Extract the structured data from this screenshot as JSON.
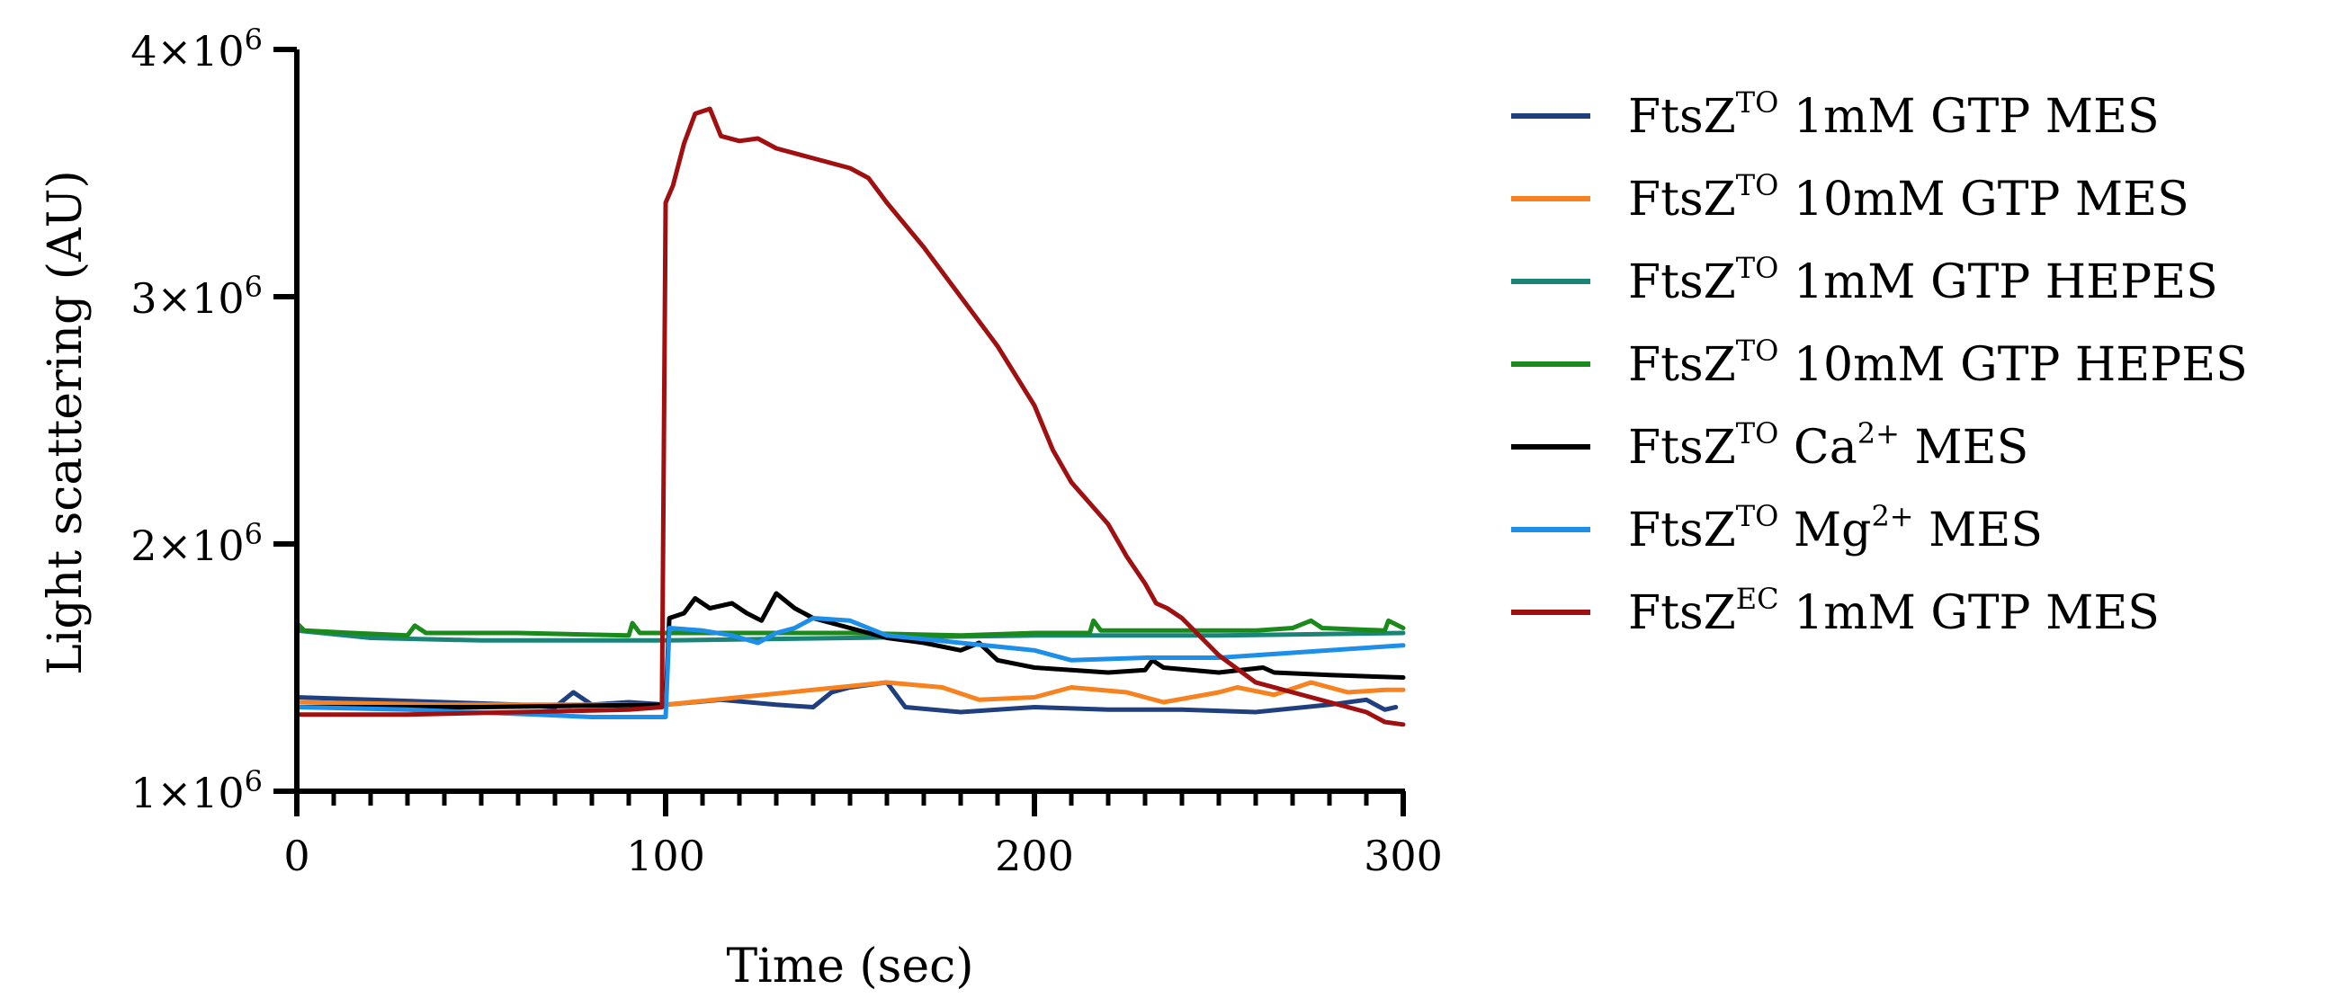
{
  "chart_data": {
    "type": "line",
    "title": "",
    "xlabel": "Time (sec)",
    "ylabel": "Light scattering (AU)",
    "xlim": [
      0,
      300
    ],
    "ylim": [
      1000000,
      4000000
    ],
    "x_ticks": [
      0,
      100,
      200,
      300
    ],
    "x_tick_labels": [
      "0",
      "100",
      "200",
      "300"
    ],
    "y_ticks": [
      {
        "value": 1000000,
        "mantissa": "1×10",
        "exponent": "6"
      },
      {
        "value": 2000000,
        "mantissa": "2×10",
        "exponent": "6"
      },
      {
        "value": 3000000,
        "mantissa": "3×10",
        "exponent": "6"
      },
      {
        "value": 4000000,
        "mantissa": "4×10",
        "exponent": "6"
      }
    ],
    "legend_position": "right",
    "series": [
      {
        "name": "FtsZTO 1mM GTP MES",
        "label": {
          "base": "FtsZ",
          "sup": "TO",
          "rest": " 1mM GTP MES",
          "sup2": "",
          "rest2": ""
        },
        "color": "#1f3f7f",
        "points": [
          [
            0,
            1380000
          ],
          [
            20,
            1370000
          ],
          [
            40,
            1360000
          ],
          [
            60,
            1350000
          ],
          [
            70,
            1340000
          ],
          [
            75,
            1400000
          ],
          [
            80,
            1350000
          ],
          [
            90,
            1360000
          ],
          [
            100,
            1350000
          ],
          [
            115,
            1370000
          ],
          [
            130,
            1350000
          ],
          [
            140,
            1340000
          ],
          [
            145,
            1400000
          ],
          [
            150,
            1420000
          ],
          [
            160,
            1440000
          ],
          [
            165,
            1340000
          ],
          [
            180,
            1320000
          ],
          [
            200,
            1340000
          ],
          [
            220,
            1330000
          ],
          [
            240,
            1330000
          ],
          [
            260,
            1320000
          ],
          [
            280,
            1350000
          ],
          [
            290,
            1370000
          ],
          [
            295,
            1330000
          ],
          [
            298,
            1340000
          ]
        ]
      },
      {
        "name": "FtsZTO 10mM GTP MES",
        "label": {
          "base": "FtsZ",
          "sup": "TO",
          "rest": " 10mM GTP MES",
          "sup2": "",
          "rest2": ""
        },
        "color": "#f7821f",
        "points": [
          [
            0,
            1360000
          ],
          [
            40,
            1350000
          ],
          [
            80,
            1350000
          ],
          [
            100,
            1350000
          ],
          [
            120,
            1380000
          ],
          [
            140,
            1410000
          ],
          [
            160,
            1440000
          ],
          [
            175,
            1420000
          ],
          [
            185,
            1370000
          ],
          [
            200,
            1380000
          ],
          [
            210,
            1420000
          ],
          [
            225,
            1400000
          ],
          [
            235,
            1360000
          ],
          [
            250,
            1400000
          ],
          [
            255,
            1420000
          ],
          [
            265,
            1390000
          ],
          [
            275,
            1440000
          ],
          [
            285,
            1400000
          ],
          [
            295,
            1410000
          ],
          [
            300,
            1410000
          ]
        ]
      },
      {
        "name": "FtsZTO 1mM GTP HEPES",
        "label": {
          "base": "FtsZ",
          "sup": "TO",
          "rest": " 1mM GTP HEPES",
          "sup2": "",
          "rest2": ""
        },
        "color": "#1b8479",
        "points": [
          [
            0,
            1650000
          ],
          [
            20,
            1620000
          ],
          [
            50,
            1610000
          ],
          [
            80,
            1610000
          ],
          [
            100,
            1610000
          ],
          [
            150,
            1620000
          ],
          [
            200,
            1630000
          ],
          [
            250,
            1630000
          ],
          [
            300,
            1640000
          ]
        ]
      },
      {
        "name": "FtsZTO 10mM GTP HEPES",
        "label": {
          "base": "FtsZ",
          "sup": "TO",
          "rest": " 10mM GTP HEPES",
          "sup2": "",
          "rest2": ""
        },
        "color": "#1a8a1a",
        "points": [
          [
            0,
            1680000
          ],
          [
            2,
            1650000
          ],
          [
            15,
            1640000
          ],
          [
            30,
            1630000
          ],
          [
            32,
            1670000
          ],
          [
            35,
            1640000
          ],
          [
            60,
            1640000
          ],
          [
            90,
            1630000
          ],
          [
            91,
            1680000
          ],
          [
            93,
            1640000
          ],
          [
            120,
            1640000
          ],
          [
            150,
            1640000
          ],
          [
            180,
            1630000
          ],
          [
            200,
            1640000
          ],
          [
            215,
            1640000
          ],
          [
            216,
            1690000
          ],
          [
            218,
            1650000
          ],
          [
            240,
            1650000
          ],
          [
            260,
            1650000
          ],
          [
            270,
            1660000
          ],
          [
            275,
            1690000
          ],
          [
            278,
            1660000
          ],
          [
            295,
            1650000
          ],
          [
            296,
            1690000
          ],
          [
            300,
            1660000
          ]
        ]
      },
      {
        "name": "FtsZTO Ca2+ MES",
        "label": {
          "base": "FtsZ",
          "sup": "TO",
          "rest": "  Ca",
          "sup2": "2+",
          "rest2": " MES"
        },
        "color": "#000000",
        "points": [
          [
            0,
            1340000
          ],
          [
            50,
            1340000
          ],
          [
            100,
            1350000
          ],
          [
            101,
            1700000
          ],
          [
            105,
            1720000
          ],
          [
            108,
            1780000
          ],
          [
            112,
            1740000
          ],
          [
            118,
            1760000
          ],
          [
            122,
            1720000
          ],
          [
            126,
            1690000
          ],
          [
            130,
            1800000
          ],
          [
            135,
            1740000
          ],
          [
            140,
            1700000
          ],
          [
            150,
            1660000
          ],
          [
            160,
            1620000
          ],
          [
            170,
            1600000
          ],
          [
            180,
            1570000
          ],
          [
            185,
            1600000
          ],
          [
            190,
            1530000
          ],
          [
            200,
            1500000
          ],
          [
            220,
            1480000
          ],
          [
            230,
            1490000
          ],
          [
            232,
            1530000
          ],
          [
            235,
            1500000
          ],
          [
            250,
            1480000
          ],
          [
            262,
            1500000
          ],
          [
            265,
            1480000
          ],
          [
            280,
            1470000
          ],
          [
            300,
            1460000
          ]
        ]
      },
      {
        "name": "FtsZTO Mg2+ MES",
        "label": {
          "base": "FtsZ",
          "sup": "TO",
          "rest": "  Mg",
          "sup2": "2+",
          "rest2": " MES"
        },
        "color": "#1e8fe8",
        "points": [
          [
            0,
            1340000
          ],
          [
            30,
            1330000
          ],
          [
            65,
            1310000
          ],
          [
            80,
            1300000
          ],
          [
            100,
            1300000
          ],
          [
            101,
            1660000
          ],
          [
            110,
            1650000
          ],
          [
            118,
            1630000
          ],
          [
            125,
            1600000
          ],
          [
            130,
            1640000
          ],
          [
            135,
            1660000
          ],
          [
            140,
            1700000
          ],
          [
            150,
            1690000
          ],
          [
            160,
            1630000
          ],
          [
            180,
            1600000
          ],
          [
            200,
            1570000
          ],
          [
            210,
            1530000
          ],
          [
            230,
            1540000
          ],
          [
            250,
            1540000
          ],
          [
            270,
            1560000
          ],
          [
            290,
            1580000
          ],
          [
            300,
            1590000
          ]
        ]
      },
      {
        "name": "FtsZEC 1mM GTP MES",
        "label": {
          "base": "FtsZ",
          "sup": "EC",
          "rest": " 1mM GTP MES",
          "sup2": "",
          "rest2": ""
        },
        "color": "#a01010",
        "points": [
          [
            0,
            1310000
          ],
          [
            30,
            1310000
          ],
          [
            60,
            1320000
          ],
          [
            90,
            1330000
          ],
          [
            99,
            1340000
          ],
          [
            100,
            3380000
          ],
          [
            102,
            3450000
          ],
          [
            105,
            3620000
          ],
          [
            108,
            3740000
          ],
          [
            112,
            3760000
          ],
          [
            115,
            3650000
          ],
          [
            120,
            3630000
          ],
          [
            125,
            3640000
          ],
          [
            130,
            3600000
          ],
          [
            140,
            3560000
          ],
          [
            150,
            3520000
          ],
          [
            155,
            3480000
          ],
          [
            160,
            3380000
          ],
          [
            170,
            3200000
          ],
          [
            180,
            3000000
          ],
          [
            190,
            2800000
          ],
          [
            200,
            2560000
          ],
          [
            205,
            2380000
          ],
          [
            210,
            2250000
          ],
          [
            220,
            2080000
          ],
          [
            225,
            1950000
          ],
          [
            230,
            1840000
          ],
          [
            233,
            1760000
          ],
          [
            236,
            1740000
          ],
          [
            240,
            1700000
          ],
          [
            250,
            1550000
          ],
          [
            260,
            1440000
          ],
          [
            270,
            1400000
          ],
          [
            280,
            1360000
          ],
          [
            290,
            1320000
          ],
          [
            295,
            1280000
          ],
          [
            300,
            1270000
          ]
        ]
      }
    ]
  }
}
